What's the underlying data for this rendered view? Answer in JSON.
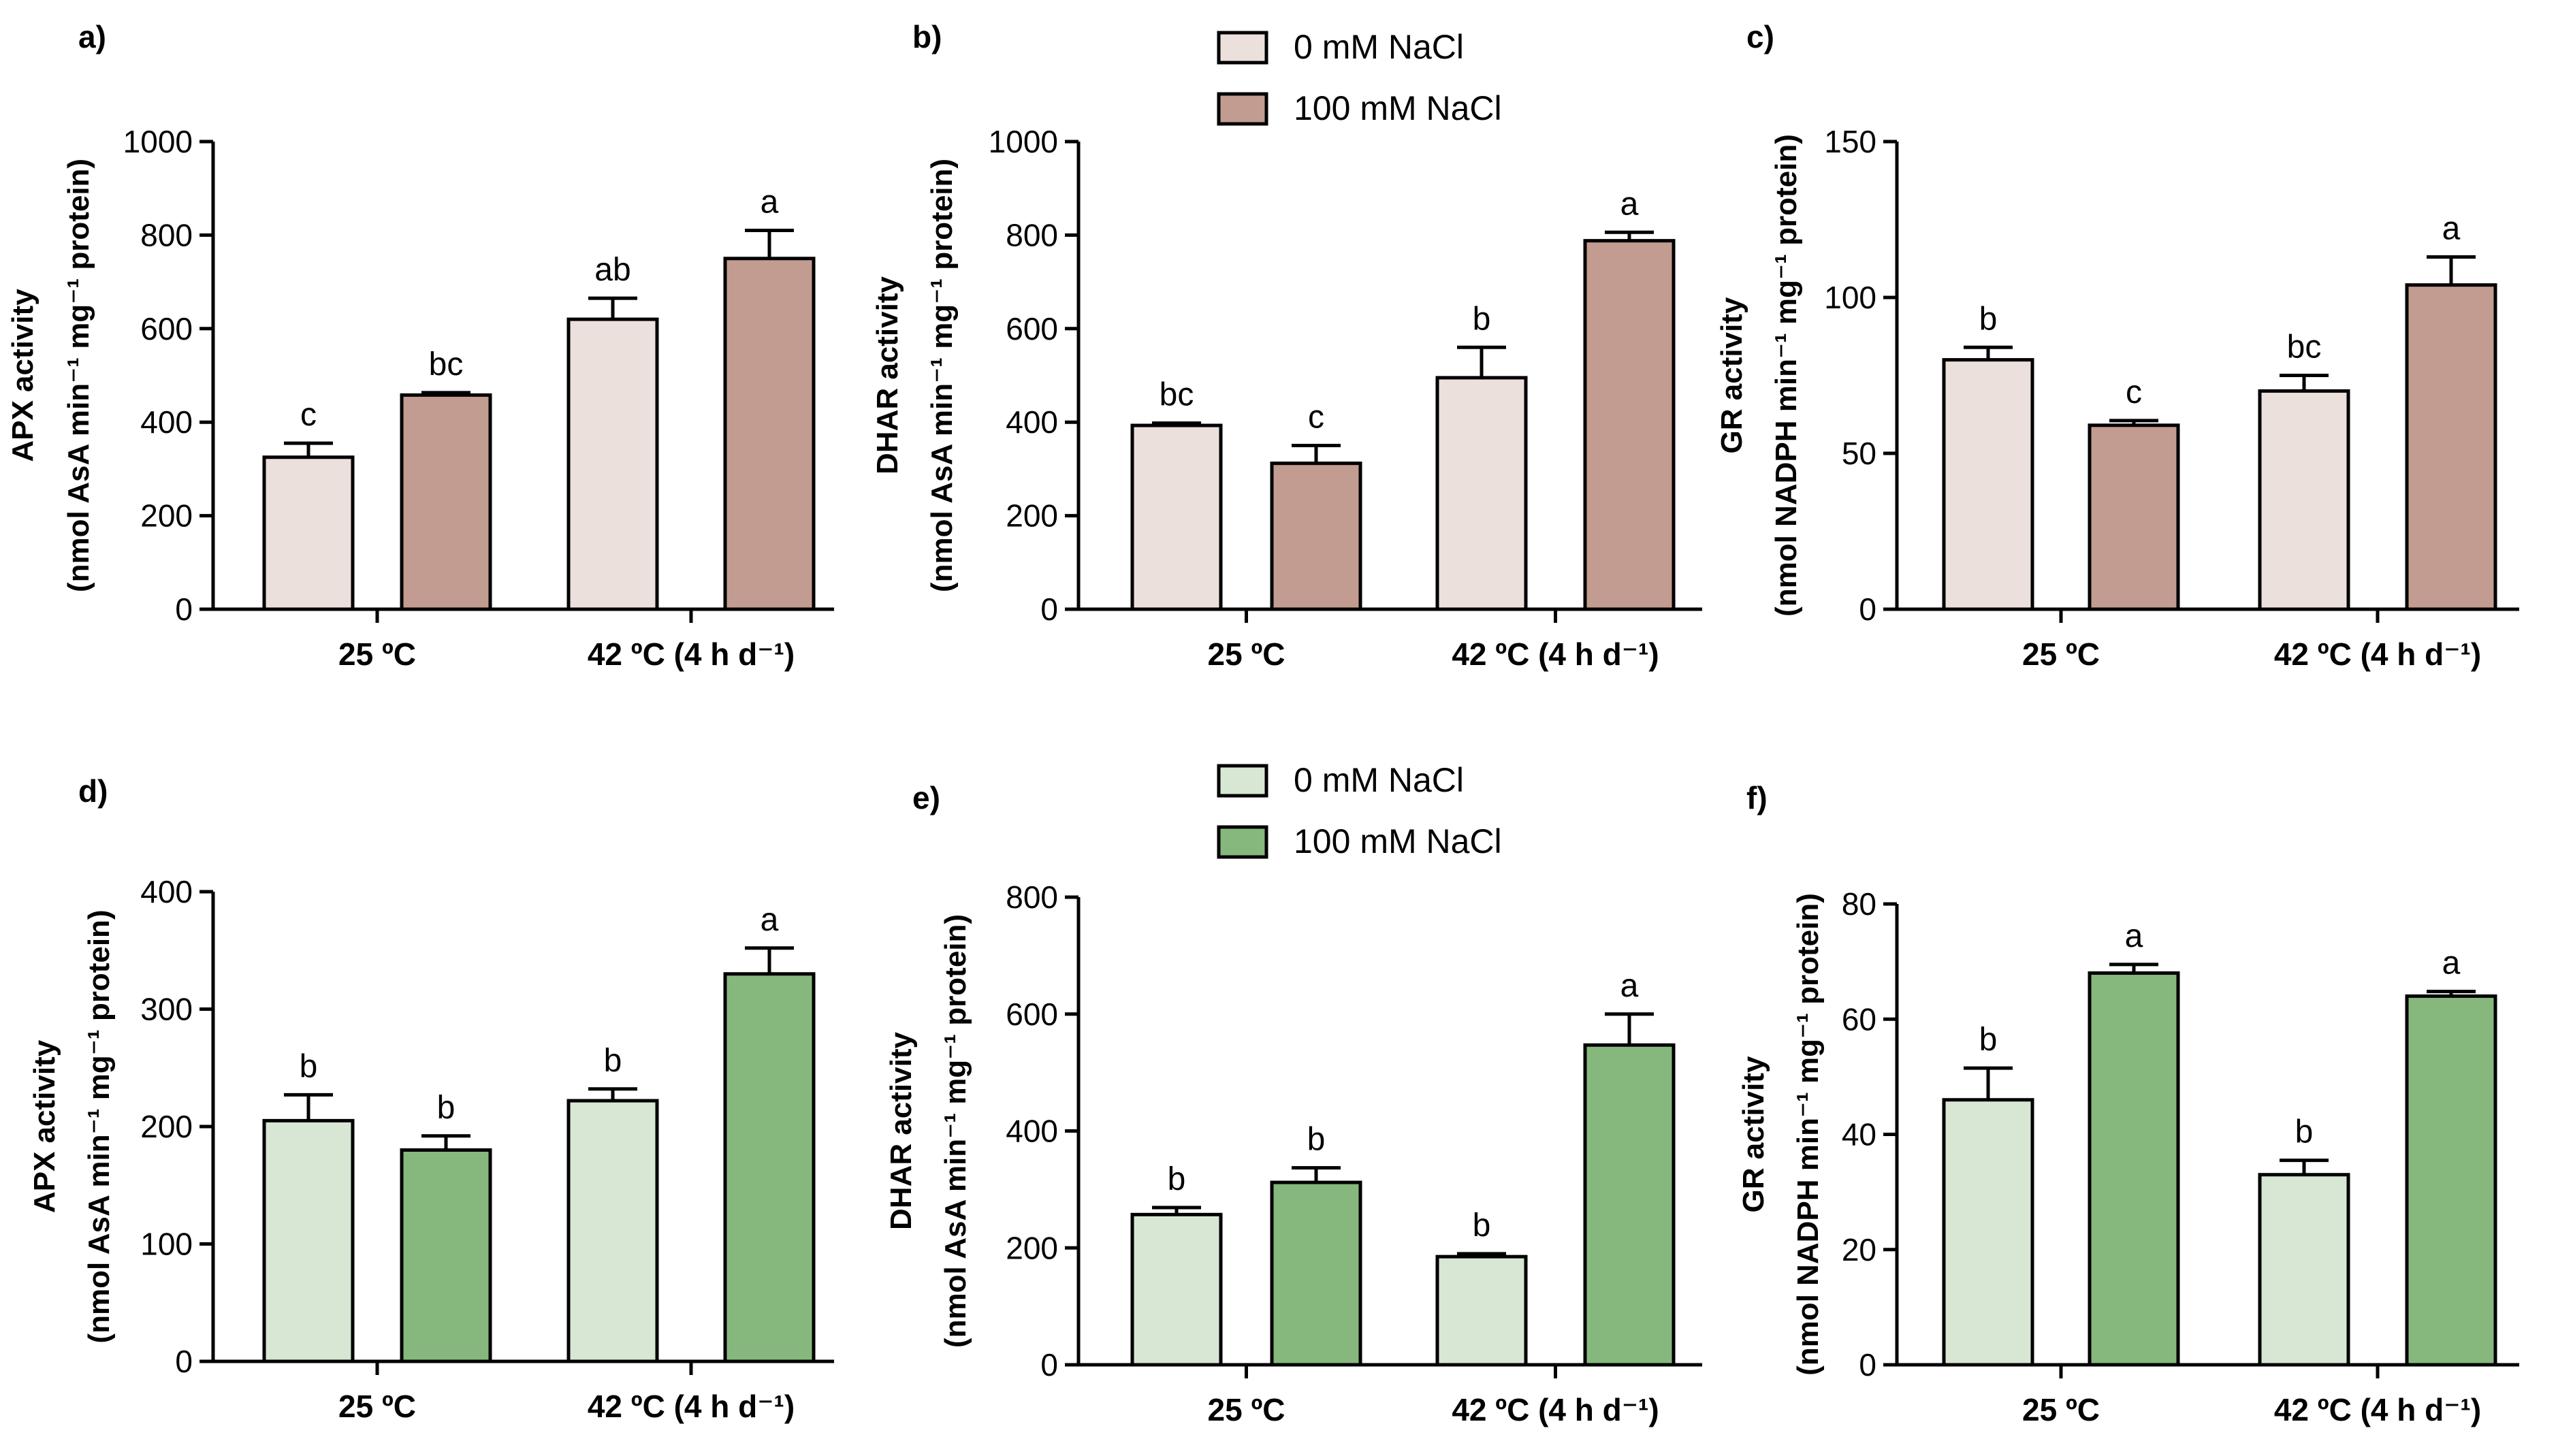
{
  "figure": {
    "legends": [
      {
        "entries": [
          {
            "label": "0 mM NaCl",
            "color": "#ebe0db"
          },
          {
            "label": "100 mM NaCl",
            "color": "#c29c90"
          }
        ]
      },
      {
        "entries": [
          {
            "label": "0 mM NaCl",
            "color": "#d7e7d3"
          },
          {
            "label": "100 mM NaCl",
            "color": "#86b87d"
          }
        ]
      }
    ]
  },
  "chart_data": [
    {
      "panel": "a)",
      "type": "bar",
      "title": "",
      "xlabel": "",
      "ylabel_line1": "APX activity",
      "ylabel_line2": "(nmol AsA min⁻¹ mg⁻¹ protein)",
      "categories": [
        "25 ºC",
        "42 ºC (4 h d⁻¹)"
      ],
      "ylim": [
        0,
        1000
      ],
      "yticks": [
        0,
        200,
        400,
        600,
        800,
        1000
      ],
      "series": [
        {
          "name": "0 mM NaCl",
          "color": "#ebe0db",
          "values": [
            325,
            620
          ],
          "errors": [
            30,
            45
          ],
          "letters": [
            "c",
            "ab"
          ]
        },
        {
          "name": "100 mM NaCl",
          "color": "#c29c90",
          "values": [
            458,
            750
          ],
          "errors": [
            5,
            60
          ],
          "letters": [
            "bc",
            "a"
          ]
        }
      ]
    },
    {
      "panel": "b)",
      "type": "bar",
      "title": "",
      "xlabel": "",
      "ylabel_line1": "DHAR activity",
      "ylabel_line2": "(nmol AsA min⁻¹ mg⁻¹ protein)",
      "categories": [
        "25 ºC",
        "42 ºC (4 h d⁻¹)"
      ],
      "ylim": [
        0,
        1000
      ],
      "yticks": [
        0,
        200,
        400,
        600,
        800,
        1000
      ],
      "series": [
        {
          "name": "0 mM NaCl",
          "color": "#ebe0db",
          "values": [
            393,
            495
          ],
          "errors": [
            5,
            65
          ],
          "letters": [
            "bc",
            "b"
          ]
        },
        {
          "name": "100 mM NaCl",
          "color": "#c29c90",
          "values": [
            312,
            788
          ],
          "errors": [
            38,
            18
          ],
          "letters": [
            "c",
            "a"
          ]
        }
      ]
    },
    {
      "panel": "c)",
      "type": "bar",
      "title": "",
      "xlabel": "",
      "ylabel_line1": "GR activity",
      "ylabel_line2": "(nmol NADPH min⁻¹ mg⁻¹ protein)",
      "categories": [
        "25 ºC",
        "42 ºC (4 h d⁻¹)"
      ],
      "ylim": [
        0,
        150
      ],
      "yticks": [
        0,
        50,
        100,
        150
      ],
      "series": [
        {
          "name": "0 mM NaCl",
          "color": "#ebe0db",
          "values": [
            80,
            70
          ],
          "errors": [
            4,
            5
          ],
          "letters": [
            "b",
            "bc"
          ]
        },
        {
          "name": "100 mM NaCl",
          "color": "#c29c90",
          "values": [
            59,
            104
          ],
          "errors": [
            1.5,
            9
          ],
          "letters": [
            "c",
            "a"
          ]
        }
      ]
    },
    {
      "panel": "d)",
      "type": "bar",
      "title": "",
      "xlabel": "",
      "ylabel_line1": "APX activity",
      "ylabel_line2": "(nmol AsA min⁻¹ mg⁻¹ protein)",
      "categories": [
        "25 ºC",
        "42 ºC (4 h d⁻¹)"
      ],
      "ylim": [
        0,
        400
      ],
      "yticks": [
        0,
        100,
        200,
        300,
        400
      ],
      "series": [
        {
          "name": "0 mM NaCl",
          "color": "#d7e7d3",
          "values": [
            205,
            222
          ],
          "errors": [
            22,
            10
          ],
          "letters": [
            "b",
            "b"
          ]
        },
        {
          "name": "100 mM NaCl",
          "color": "#86b87d",
          "values": [
            180,
            330
          ],
          "errors": [
            12,
            22
          ],
          "letters": [
            "b",
            "a"
          ]
        }
      ]
    },
    {
      "panel": "e)",
      "type": "bar",
      "title": "",
      "xlabel": "",
      "ylabel_line1": "DHAR activity",
      "ylabel_line2": "(nmol AsA min⁻¹ mg⁻¹ protein)",
      "categories": [
        "25 ºC",
        "42 ºC (4 h d⁻¹)"
      ],
      "ylim": [
        0,
        800
      ],
      "yticks": [
        0,
        200,
        400,
        600,
        800
      ],
      "series": [
        {
          "name": "0 mM NaCl",
          "color": "#d7e7d3",
          "values": [
            257,
            185
          ],
          "errors": [
            12,
            5
          ],
          "letters": [
            "b",
            "b"
          ]
        },
        {
          "name": "100 mM NaCl",
          "color": "#86b87d",
          "values": [
            312,
            547
          ],
          "errors": [
            25,
            53
          ],
          "letters": [
            "b",
            "a"
          ]
        }
      ]
    },
    {
      "panel": "f)",
      "type": "bar",
      "title": "",
      "xlabel": "",
      "ylabel_line1": "GR activity",
      "ylabel_line2": "(nmol NADPH min⁻¹ mg⁻¹ protein)",
      "categories": [
        "25 ºC",
        "42 ºC (4 h d⁻¹)"
      ],
      "ylim": [
        0,
        80
      ],
      "yticks": [
        0,
        20,
        40,
        60,
        80
      ],
      "series": [
        {
          "name": "0 mM NaCl",
          "color": "#d7e7d3",
          "values": [
            46,
            33
          ],
          "errors": [
            5.5,
            2.5
          ],
          "letters": [
            "b",
            "b"
          ]
        },
        {
          "name": "100 mM NaCl",
          "color": "#86b87d",
          "values": [
            68,
            64
          ],
          "errors": [
            1.5,
            0.8
          ],
          "letters": [
            "a",
            "a"
          ]
        }
      ]
    }
  ]
}
